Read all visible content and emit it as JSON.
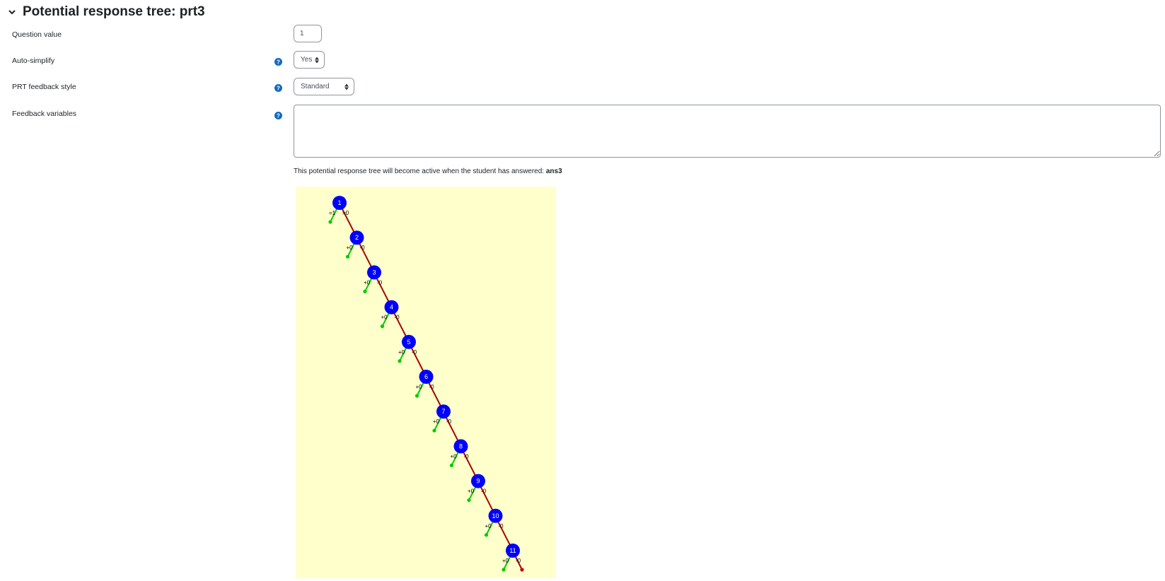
{
  "section": {
    "title": "Potential response tree: prt3",
    "chevron_icon": "chevron-down-icon"
  },
  "form": {
    "question_value": {
      "label": "Question value",
      "value": "1"
    },
    "auto_simplify": {
      "label": "Auto-simplify",
      "value": "Yes",
      "options": [
        "Yes"
      ],
      "help_icon": "question-circle-icon"
    },
    "prt_feedback_style": {
      "label": "PRT feedback style",
      "value": "Standard",
      "options": [
        "Standard"
      ],
      "help_icon": "question-circle-icon"
    },
    "feedback_variables": {
      "label": "Feedback variables",
      "value": "",
      "help_icon": "question-circle-icon"
    }
  },
  "active_note": {
    "text": "This potential response tree will become active when the student has answered:",
    "answer": "ans3"
  },
  "tree": {
    "background_color": "#ffffcc",
    "node_color": "#0000ff",
    "true_branch_color": "#00cc00",
    "false_branch_color": "#aa0000",
    "final_false_color": "#cc0000",
    "nodes": [
      {
        "id": "1",
        "true_label": "=1",
        "false_label": "=0"
      },
      {
        "id": "2",
        "true_label": "+0",
        "false_label": "-0"
      },
      {
        "id": "3",
        "true_label": "+0",
        "false_label": "-0"
      },
      {
        "id": "4",
        "true_label": "+0",
        "false_label": "-0"
      },
      {
        "id": "5",
        "true_label": "+0",
        "false_label": "-0"
      },
      {
        "id": "6",
        "true_label": "+0",
        "false_label": "-0"
      },
      {
        "id": "7",
        "true_label": "+0",
        "false_label": "-0"
      },
      {
        "id": "8",
        "true_label": "+0",
        "false_label": "-0"
      },
      {
        "id": "9",
        "true_label": "+0",
        "false_label": "-0"
      },
      {
        "id": "10",
        "true_label": "+0",
        "false_label": "-0"
      },
      {
        "id": "11",
        "true_label": "+0",
        "false_label": "-0"
      }
    ]
  }
}
